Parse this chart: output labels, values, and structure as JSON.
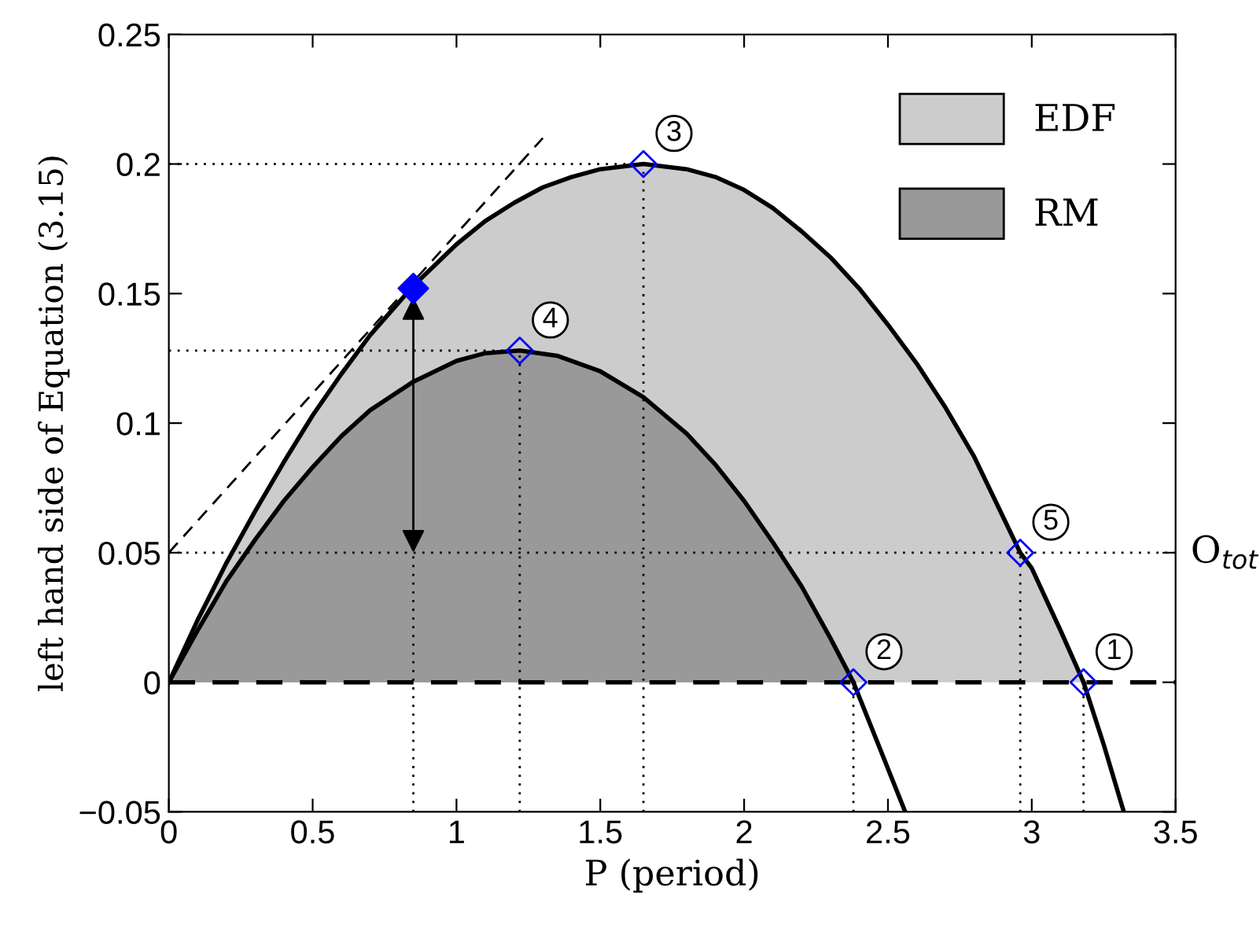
{
  "chart_data": {
    "type": "area",
    "xlabel": "P (period)",
    "ylabel": "left hand side of Equation (3.15)",
    "xlim": [
      0,
      3.5
    ],
    "xticks": [
      0,
      0.5,
      1,
      1.5,
      2,
      2.5,
      3,
      3.5
    ],
    "ylim": [
      -0.05,
      0.25
    ],
    "yticks": [
      {
        "value": -0.05,
        "label": "−0.05"
      },
      0,
      0.05,
      0.1,
      0.15,
      0.2,
      0.25
    ],
    "grid": false,
    "legend": "top right",
    "series": [
      {
        "name": "EDF",
        "color": "#cccccc",
        "x": [
          0,
          0.1,
          0.2,
          0.3,
          0.4,
          0.5,
          0.6,
          0.7,
          0.85,
          1.0,
          1.1,
          1.2,
          1.3,
          1.4,
          1.5,
          1.65,
          1.8,
          1.9,
          2.0,
          2.1,
          2.2,
          2.3,
          2.4,
          2.5,
          2.6,
          2.7,
          2.8,
          2.96,
          3.0,
          3.1,
          3.18
        ],
        "values": [
          0,
          0.024,
          0.046,
          0.066,
          0.085,
          0.103,
          0.119,
          0.134,
          0.153,
          0.169,
          0.178,
          0.185,
          0.191,
          0.195,
          0.198,
          0.2,
          0.198,
          0.195,
          0.19,
          0.183,
          0.174,
          0.164,
          0.152,
          0.138,
          0.123,
          0.106,
          0.087,
          0.05,
          0.044,
          0.02,
          0
        ]
      },
      {
        "name": "RM",
        "color": "#999999",
        "x": [
          0,
          0.1,
          0.2,
          0.3,
          0.4,
          0.5,
          0.6,
          0.7,
          0.85,
          1.0,
          1.1,
          1.22,
          1.35,
          1.5,
          1.65,
          1.8,
          1.9,
          2.0,
          2.1,
          2.2,
          2.3,
          2.38
        ],
        "values": [
          0,
          0.02,
          0.039,
          0.055,
          0.07,
          0.083,
          0.095,
          0.105,
          0.116,
          0.124,
          0.127,
          0.128,
          0.126,
          0.12,
          0.11,
          0.096,
          0.084,
          0.07,
          0.054,
          0.037,
          0.017,
          0
        ]
      },
      {
        "type": "line",
        "color": "#000000",
        "line_style": "solid",
        "x": [
          3.18,
          3.25,
          3.32
        ],
        "values": [
          0,
          -0.024,
          -0.05
        ]
      },
      {
        "type": "line",
        "color": "#000000",
        "line_style": "solid",
        "x": [
          2.38,
          2.47,
          2.56
        ],
        "values": [
          0,
          -0.025,
          -0.05
        ]
      },
      {
        "type": "line",
        "color": "#000000",
        "line_style": "dashed",
        "x": [
          0,
          1.3
        ],
        "values": [
          0.05,
          0.21
        ]
      },
      {
        "type": "line",
        "color": "#000000",
        "line_style": "dotted",
        "x": [
          0,
          1.65
        ],
        "values": [
          0.2,
          0.2
        ]
      },
      {
        "type": "line",
        "color": "#000000",
        "line_style": "dotted",
        "x": [
          0,
          1.22
        ],
        "values": [
          0.128,
          0.128
        ]
      },
      {
        "type": "line",
        "color": "#000000",
        "line_style": "dotted",
        "x": [
          0.85,
          0.85
        ],
        "values": [
          -0.05,
          0.05
        ]
      },
      {
        "type": "line",
        "color": "#000000",
        "line_style": "dotted",
        "x": [
          1.22,
          1.22
        ],
        "values": [
          -0.05,
          0.128
        ]
      },
      {
        "type": "line",
        "color": "#000000",
        "line_style": "dotted",
        "x": [
          1.65,
          1.65
        ],
        "values": [
          -0.05,
          0.2
        ]
      },
      {
        "type": "line",
        "color": "#000000",
        "line_style": "dotted",
        "x": [
          2.38,
          2.38
        ],
        "values": [
          -0.05,
          0
        ]
      },
      {
        "type": "line",
        "color": "#000000",
        "line_style": "dotted",
        "x": [
          2.96,
          2.96
        ],
        "values": [
          -0.05,
          0.05
        ]
      },
      {
        "type": "line",
        "color": "#000000",
        "line_style": "dotted",
        "x": [
          3.18,
          3.18
        ],
        "values": [
          -0.05,
          0
        ]
      },
      {
        "type": "scatter",
        "color": "#0000ff",
        "marker": "diamond",
        "x": [
          3.18,
          2.38,
          1.65,
          1.22,
          2.96
        ],
        "values": [
          0,
          0,
          0.2,
          0.128,
          0.05
        ]
      },
      {
        "type": "scatter",
        "color": "#0000ff",
        "marker": "diamond",
        "x": [
          0.85
        ],
        "values": [
          0.152
        ]
      }
    ],
    "ref_lines": [
      {
        "axis": "y",
        "value": 0,
        "line_style": "dashed",
        "color": "#000000"
      },
      {
        "axis": "y",
        "value": 0.05,
        "line_style": "dotted",
        "color": "#000000",
        "label": "O$_{tot}$"
      }
    ],
    "annotations": [
      {
        "text": "1",
        "x": 3.18,
        "y": 0
      },
      {
        "text": "2",
        "x": 2.38,
        "y": 0
      },
      {
        "text": "3",
        "x": 1.65,
        "y": 0.2
      },
      {
        "text": "4",
        "x": 1.22,
        "y": 0.128
      },
      {
        "text": "5",
        "x": 2.96,
        "y": 0.05
      }
    ]
  }
}
